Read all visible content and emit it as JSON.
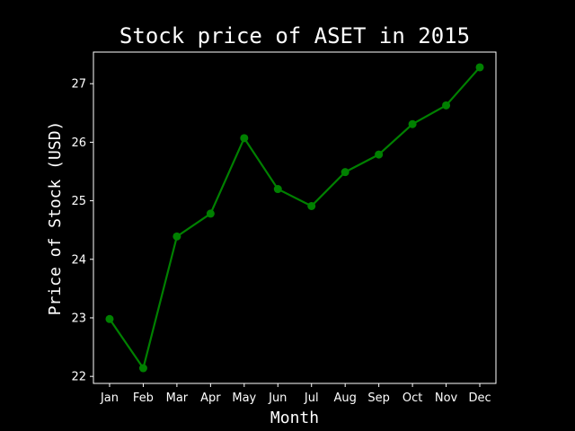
{
  "chart_data": {
    "type": "line",
    "title": "Stock price of ASET in 2015",
    "xlabel": "Month",
    "ylabel": "Price of Stock (USD)",
    "categories": [
      "Jan",
      "Feb",
      "Mar",
      "Apr",
      "May",
      "Jun",
      "Jul",
      "Aug",
      "Sep",
      "Oct",
      "Nov",
      "Dec"
    ],
    "series": [
      {
        "values": [
          22.98,
          22.14,
          24.39,
          24.78,
          26.07,
          25.2,
          24.91,
          25.49,
          25.79,
          26.31,
          26.63,
          27.28
        ]
      }
    ],
    "ylim": [
      21.88,
      27.54
    ],
    "yticks": [
      22,
      23,
      24,
      25,
      26,
      27
    ],
    "grid": false,
    "legend": "none",
    "colors": {
      "background": "#000000",
      "line": "#008000",
      "axes": "#ffffff",
      "text": "#ffffff"
    }
  }
}
